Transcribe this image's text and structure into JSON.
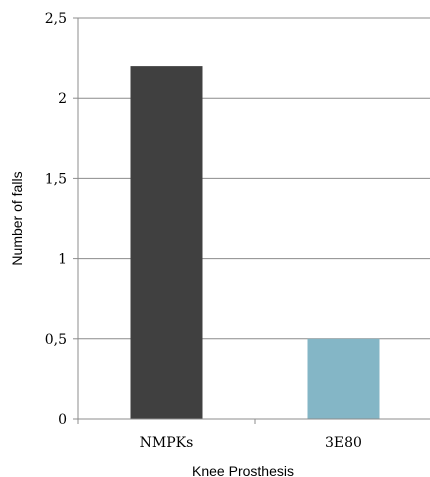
{
  "chart_data": {
    "type": "bar",
    "title": "",
    "xlabel": "Knee Prosthesis",
    "ylabel": "Number of falls",
    "categories": [
      "NMPKs",
      "3E80"
    ],
    "values": [
      2.2,
      0.5
    ],
    "bar_colors": [
      "#404040",
      "#84b6c6"
    ],
    "ylim": [
      0,
      2.5
    ],
    "yticks": [
      0,
      0.5,
      1,
      1.5,
      2,
      2.5
    ],
    "ytick_labels": [
      "0",
      "0,5",
      "1",
      "1,5",
      "2",
      "2,5"
    ],
    "grid": true,
    "legend": "none"
  }
}
